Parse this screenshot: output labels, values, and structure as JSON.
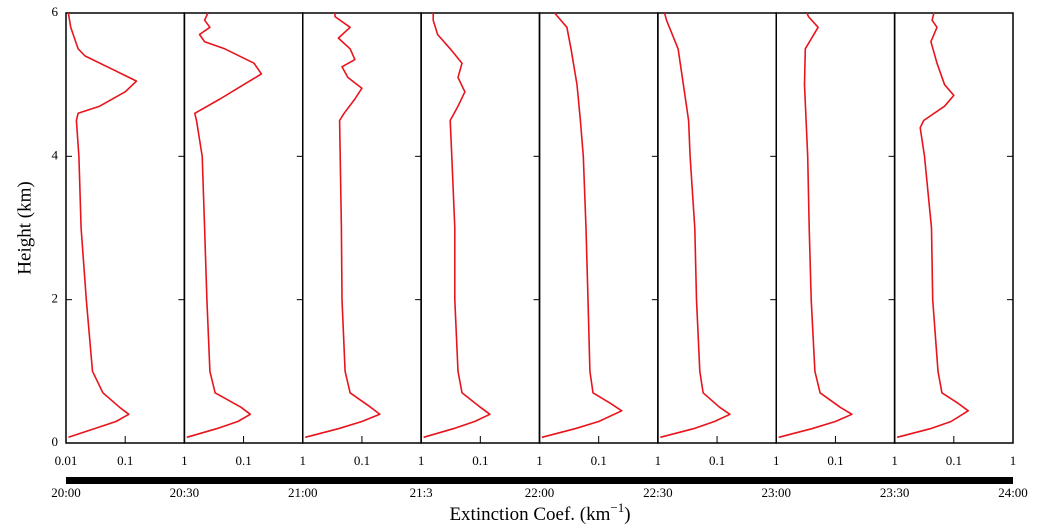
{
  "figure": {
    "y_label": "Height (km)",
    "x_label": {
      "text": "Extinction Coef. (km",
      "superscript": "−1",
      "suffix": ")"
    },
    "time_labels": [
      "20:00",
      "20:30",
      "21:00",
      "21:3",
      "22:00",
      "22:30",
      "23:00",
      "23:30",
      "24:00"
    ]
  },
  "chart_data": [
    {
      "type": "line",
      "xscale": "log",
      "xlim": [
        0.01,
        1
      ],
      "ylim": [
        0,
        6
      ],
      "yticks": [
        0,
        2,
        4,
        6
      ],
      "xticks": [
        0.01,
        0.1,
        1
      ],
      "series": [
        {
          "color": "#e8141c",
          "y": [
            0.08,
            0.2,
            0.3,
            0.4,
            0.5,
            0.7,
            1,
            2,
            3,
            4,
            4.5,
            4.6,
            4.7,
            4.9,
            5.05,
            5.2,
            5.4,
            5.5,
            5.8,
            6
          ],
          "x": [
            0.011,
            0.03,
            0.07,
            0.115,
            0.08,
            0.042,
            0.028,
            0.022,
            0.018,
            0.0165,
            0.015,
            0.016,
            0.037,
            0.1,
            0.155,
            0.066,
            0.021,
            0.016,
            0.012,
            0.011
          ]
        }
      ]
    },
    {
      "type": "line",
      "xscale": "log",
      "xlim": [
        0.01,
        1
      ],
      "ylim": [
        0,
        6
      ],
      "yticks": [
        0,
        2,
        4,
        6
      ],
      "xticks": [
        0.1,
        1
      ],
      "series": [
        {
          "color": "#e8141c",
          "y": [
            0.08,
            0.2,
            0.3,
            0.4,
            0.5,
            0.7,
            1,
            2,
            3,
            4,
            4.5,
            4.6,
            4.8,
            5.0,
            5.15,
            5.3,
            5.5,
            5.6,
            5.7,
            5.8,
            5.9,
            6
          ],
          "x": [
            0.011,
            0.035,
            0.08,
            0.13,
            0.09,
            0.033,
            0.027,
            0.024,
            0.022,
            0.02,
            0.016,
            0.015,
            0.04,
            0.1,
            0.2,
            0.15,
            0.048,
            0.022,
            0.018,
            0.027,
            0.022,
            0.025
          ]
        }
      ]
    },
    {
      "type": "line",
      "xscale": "log",
      "xlim": [
        0.01,
        1
      ],
      "ylim": [
        0,
        6
      ],
      "yticks": [
        0,
        2,
        4,
        6
      ],
      "xticks": [
        0.1,
        1
      ],
      "series": [
        {
          "color": "#e8141c",
          "y": [
            0.08,
            0.2,
            0.3,
            0.4,
            0.5,
            0.7,
            1,
            2,
            3,
            4,
            4.5,
            4.6,
            4.8,
            4.95,
            5.1,
            5.25,
            5.35,
            5.5,
            5.65,
            5.8,
            5.95,
            6
          ],
          "x": [
            0.011,
            0.04,
            0.1,
            0.2,
            0.14,
            0.063,
            0.052,
            0.046,
            0.045,
            0.043,
            0.042,
            0.05,
            0.076,
            0.1,
            0.058,
            0.046,
            0.076,
            0.063,
            0.04,
            0.063,
            0.035,
            0.035
          ]
        }
      ]
    },
    {
      "type": "line",
      "xscale": "log",
      "xlim": [
        0.01,
        1
      ],
      "ylim": [
        0,
        6
      ],
      "yticks": [
        0,
        2,
        4,
        6
      ],
      "xticks": [
        0.1,
        1
      ],
      "series": [
        {
          "color": "#e8141c",
          "y": [
            0.08,
            0.2,
            0.3,
            0.4,
            0.5,
            0.7,
            1,
            2,
            3,
            4,
            4.5,
            4.7,
            4.9,
            5.1,
            5.3,
            5.5,
            5.7,
            5.9,
            6
          ],
          "x": [
            0.011,
            0.035,
            0.08,
            0.145,
            0.1,
            0.049,
            0.042,
            0.037,
            0.037,
            0.033,
            0.031,
            0.042,
            0.055,
            0.042,
            0.049,
            0.031,
            0.019,
            0.016,
            0.016
          ]
        }
      ]
    },
    {
      "type": "line",
      "xscale": "log",
      "xlim": [
        0.01,
        1
      ],
      "ylim": [
        0,
        6
      ],
      "yticks": [
        0,
        2,
        4,
        6
      ],
      "xticks": [
        0.1,
        1
      ],
      "series": [
        {
          "color": "#e8141c",
          "y": [
            0.08,
            0.2,
            0.3,
            0.45,
            0.55,
            0.7,
            1,
            2,
            3,
            4,
            4.5,
            5,
            5.5,
            5.8,
            6
          ],
          "x": [
            0.011,
            0.04,
            0.1,
            0.245,
            0.16,
            0.08,
            0.071,
            0.066,
            0.061,
            0.055,
            0.049,
            0.043,
            0.034,
            0.029,
            0.018
          ]
        }
      ]
    },
    {
      "type": "line",
      "xscale": "log",
      "xlim": [
        0.01,
        1
      ],
      "ylim": [
        0,
        6
      ],
      "yticks": [
        0,
        2,
        4,
        6
      ],
      "xticks": [
        0.1,
        1
      ],
      "series": [
        {
          "color": "#e8141c",
          "y": [
            0.08,
            0.2,
            0.3,
            0.4,
            0.5,
            0.7,
            1,
            2,
            3,
            4,
            4.5,
            5,
            5.5,
            5.9,
            6
          ],
          "x": [
            0.011,
            0.04,
            0.09,
            0.165,
            0.11,
            0.058,
            0.051,
            0.045,
            0.042,
            0.035,
            0.033,
            0.027,
            0.022,
            0.014,
            0.013
          ]
        }
      ]
    },
    {
      "type": "line",
      "xscale": "log",
      "xlim": [
        0.01,
        1
      ],
      "ylim": [
        0,
        6
      ],
      "yticks": [
        0,
        2,
        4,
        6
      ],
      "xticks": [
        0.1,
        1
      ],
      "series": [
        {
          "color": "#e8141c",
          "y": [
            0.08,
            0.2,
            0.3,
            0.4,
            0.5,
            0.7,
            1,
            2,
            3,
            4,
            4.5,
            5,
            5.5,
            5.8,
            5.95,
            6
          ],
          "x": [
            0.011,
            0.04,
            0.1,
            0.19,
            0.12,
            0.055,
            0.045,
            0.039,
            0.036,
            0.034,
            0.032,
            0.03,
            0.031,
            0.051,
            0.035,
            0.033
          ]
        }
      ]
    },
    {
      "type": "line",
      "xscale": "log",
      "xlim": [
        0.01,
        1
      ],
      "ylim": [
        0,
        6
      ],
      "yticks": [
        0,
        2,
        4,
        6
      ],
      "xticks": [
        0.1,
        1
      ],
      "series": [
        {
          "color": "#e8141c",
          "y": [
            0.08,
            0.2,
            0.3,
            0.45,
            0.55,
            0.7,
            1,
            2,
            3,
            4,
            4.4,
            4.5,
            4.7,
            4.85,
            5,
            5.3,
            5.6,
            5.8,
            5.9,
            6
          ],
          "x": [
            0.011,
            0.04,
            0.09,
            0.175,
            0.12,
            0.063,
            0.054,
            0.044,
            0.042,
            0.032,
            0.027,
            0.031,
            0.07,
            0.1,
            0.07,
            0.052,
            0.041,
            0.052,
            0.043,
            0.046
          ]
        }
      ]
    }
  ]
}
